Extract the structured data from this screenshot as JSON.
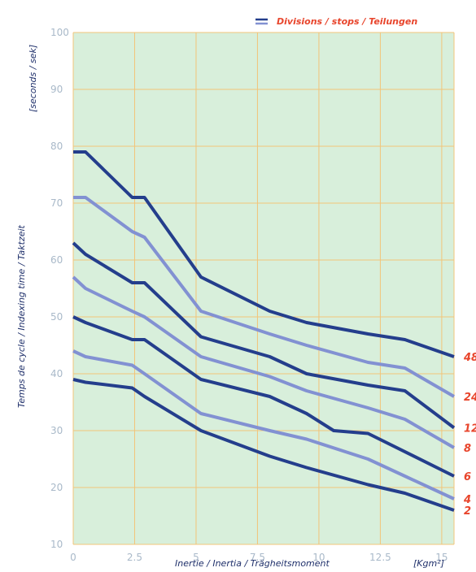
{
  "chart_data": {
    "type": "line",
    "title": "",
    "legend": {
      "text": "Divisions / stops / Teilungen",
      "placement": "top-right",
      "color": "#e8452c"
    },
    "xlabel": "Inertie / Inertia / Trägheitsmoment",
    "xunit": "[Kgm²]",
    "ylabel": "Temps de cycle / Indexing time / Taktzeit",
    "yunit": "[seconds / sek]",
    "xlim": [
      0,
      15.5
    ],
    "ylim": [
      10,
      100
    ],
    "xticks": [
      0,
      2.5,
      5,
      7.5,
      10,
      12.5,
      15
    ],
    "xtick_labels": [
      "0",
      "2.5",
      "5",
      "7.5",
      "10",
      "12.5",
      "15"
    ],
    "yticks": [
      10,
      20,
      30,
      40,
      50,
      60,
      70,
      80,
      90,
      100
    ],
    "ytick_labels": [
      "10",
      "20",
      "30",
      "40",
      "50",
      "60",
      "70",
      "80",
      "90",
      "100"
    ],
    "grid": true,
    "colors": {
      "background": "#d8efdb",
      "grid": "#f2c479",
      "dark_line": "#243e8c",
      "light_line": "#8291d2",
      "accent": "#e8452c"
    },
    "series": [
      {
        "name": "48",
        "style": "dark",
        "x": [
          0,
          0.5,
          2.4,
          2.9,
          5.2,
          8,
          9.5,
          12,
          13.5,
          15.5
        ],
        "y": [
          79,
          79,
          71,
          71,
          57,
          51,
          49,
          47,
          46,
          43
        ]
      },
      {
        "name": "24",
        "style": "light",
        "x": [
          0,
          0.5,
          2.4,
          2.9,
          5.2,
          8,
          9.5,
          12,
          13.5,
          15.5
        ],
        "y": [
          71,
          71,
          65,
          64,
          51,
          47,
          45,
          42,
          41,
          36
        ]
      },
      {
        "name": "12",
        "style": "dark",
        "x": [
          0,
          0.5,
          2.4,
          2.9,
          5.2,
          8,
          9.5,
          12,
          13.5,
          15.5
        ],
        "y": [
          63,
          61,
          56,
          56,
          46.5,
          43,
          40,
          38,
          37,
          30.5
        ]
      },
      {
        "name": "8",
        "style": "light",
        "x": [
          0,
          0.5,
          2.4,
          2.9,
          5.2,
          8,
          9.5,
          12,
          13.5,
          15.5
        ],
        "y": [
          57,
          55,
          51,
          50,
          43,
          39.5,
          37,
          34,
          32,
          27
        ]
      },
      {
        "name": "6",
        "style": "dark",
        "x": [
          0,
          0.5,
          2.4,
          2.9,
          5.2,
          8,
          9.5,
          10.6,
          12,
          15.5
        ],
        "y": [
          50,
          49,
          46,
          46,
          39,
          36,
          33,
          30,
          29.5,
          22
        ]
      },
      {
        "name": "4",
        "style": "light",
        "x": [
          0,
          0.5,
          2.4,
          2.9,
          5.2,
          8,
          9.5,
          12,
          13.5,
          15.5
        ],
        "y": [
          44,
          43,
          41.5,
          40,
          33,
          30,
          28.5,
          25,
          22,
          18
        ]
      },
      {
        "name": "2",
        "style": "dark",
        "x": [
          0,
          0.5,
          2.4,
          2.9,
          5.2,
          8,
          9.5,
          12,
          13.5,
          15.5
        ],
        "y": [
          39,
          38.5,
          37.5,
          36,
          30,
          25.5,
          23.5,
          20.5,
          19,
          16
        ]
      }
    ]
  }
}
